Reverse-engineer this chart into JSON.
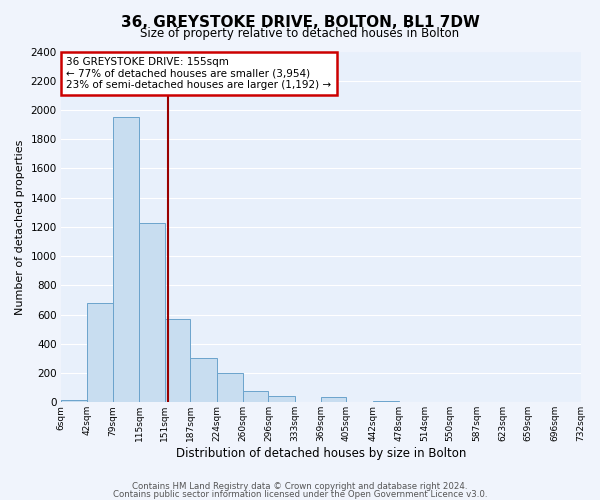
{
  "title": "36, GREYSTOKE DRIVE, BOLTON, BL1 7DW",
  "subtitle": "Size of property relative to detached houses in Bolton",
  "xlabel": "Distribution of detached houses by size in Bolton",
  "ylabel": "Number of detached properties",
  "bar_color": "#c8ddf0",
  "bar_edge_color": "#6ba3cc",
  "background_color": "#e8f0fb",
  "fig_background_color": "#f0f4fc",
  "grid_color": "#ffffff",
  "bin_edges": [
    6,
    42,
    79,
    115,
    151,
    187,
    224,
    260,
    296,
    333,
    369,
    405,
    442,
    478,
    514,
    550,
    587,
    623,
    659,
    696,
    732
  ],
  "bin_labels": [
    "6sqm",
    "42sqm",
    "79sqm",
    "115sqm",
    "151sqm",
    "187sqm",
    "224sqm",
    "260sqm",
    "296sqm",
    "333sqm",
    "369sqm",
    "405sqm",
    "442sqm",
    "478sqm",
    "514sqm",
    "550sqm",
    "587sqm",
    "623sqm",
    "659sqm",
    "696sqm",
    "732sqm"
  ],
  "counts": [
    18,
    680,
    1950,
    1230,
    570,
    305,
    200,
    80,
    45,
    0,
    35,
    0,
    12,
    0,
    0,
    0,
    0,
    0,
    0,
    0
  ],
  "property_line_x": 155,
  "property_line_color": "#990000",
  "annotation_line1": "36 GREYSTOKE DRIVE: 155sqm",
  "annotation_line2": "← 77% of detached houses are smaller (3,954)",
  "annotation_line3": "23% of semi-detached houses are larger (1,192) →",
  "annotation_box_color": "#ffffff",
  "annotation_box_edge_color": "#cc0000",
  "ylim": [
    0,
    2400
  ],
  "yticks": [
    0,
    200,
    400,
    600,
    800,
    1000,
    1200,
    1400,
    1600,
    1800,
    2000,
    2200,
    2400
  ],
  "footer1": "Contains HM Land Registry data © Crown copyright and database right 2024.",
  "footer2": "Contains public sector information licensed under the Open Government Licence v3.0."
}
